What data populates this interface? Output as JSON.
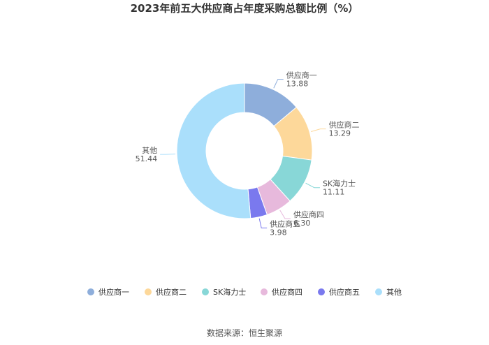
{
  "chart_data": {
    "type": "pie",
    "title": "2023年前五大供应商占年度采购总额比例（%）",
    "categories": [
      "供应商一",
      "供应商二",
      "SK海力士",
      "供应商四",
      "供应商五",
      "其他"
    ],
    "values": [
      13.88,
      13.29,
      11.11,
      6.3,
      3.98,
      51.44
    ],
    "value_labels": [
      "13.88",
      "13.29",
      "11.11",
      "6.30",
      "3.98",
      "51.44"
    ],
    "colors": [
      "#8eaedb",
      "#fdd89a",
      "#88d7d7",
      "#e7b9dc",
      "#7a79ee",
      "#aadffb"
    ],
    "legend": {
      "position": "bottom",
      "items": [
        "供应商一",
        "供应商二",
        "SK海力士",
        "供应商四",
        "供应商五",
        "其他"
      ]
    },
    "donut": true
  },
  "footer": {
    "source": "数据来源：恒生聚源"
  }
}
